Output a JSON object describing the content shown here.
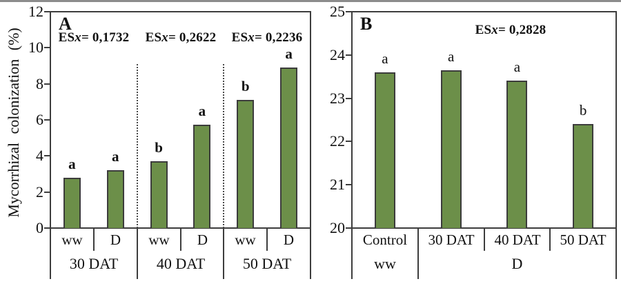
{
  "figure": {
    "background": "#ffffff",
    "top_edge_color": "#8c8c8c"
  },
  "colors": {
    "bar_fill": "#6c8f49",
    "bar_border": "#3c3c3c",
    "axis": "#3d3d3d",
    "divider": "#4a4a4a",
    "text": "#111111"
  },
  "chart_data": [
    {
      "type": "bar",
      "panel_label": "A",
      "ylabel": "Mycorrhizal colonization (%)",
      "ylim": [
        0,
        12
      ],
      "yticks": [
        0,
        2,
        4,
        6,
        8,
        10,
        12
      ],
      "grid": false,
      "legend_position": "none",
      "letters_bold": true,
      "groups": [
        {
          "label": "30 DAT",
          "es": "ESx= 0,1732",
          "bars": [
            {
              "category": "ww",
              "value": 2.8,
              "letter": "a"
            },
            {
              "category": "D",
              "value": 3.2,
              "letter": "a"
            }
          ]
        },
        {
          "label": "40 DAT",
          "es": "ESx= 0,2622",
          "bars": [
            {
              "category": "ww",
              "value": 3.7,
              "letter": "b"
            },
            {
              "category": "D",
              "value": 5.75,
              "letter": "a"
            }
          ]
        },
        {
          "label": "50 DAT",
          "es": "ESx= 0,2236",
          "bars": [
            {
              "category": "ww",
              "value": 7.1,
              "letter": "b"
            },
            {
              "category": "D",
              "value": 8.9,
              "letter": "a"
            }
          ]
        }
      ]
    },
    {
      "type": "bar",
      "panel_label": "B",
      "es": "ESx= 0,2828",
      "ylim": [
        20,
        25
      ],
      "yticks": [
        20,
        21,
        22,
        23,
        24,
        25
      ],
      "grid": false,
      "legend_position": "none",
      "letters_bold": false,
      "bars": [
        {
          "category": "Control",
          "value": 23.6,
          "letter": "a"
        },
        {
          "category": "30 DAT",
          "value": 23.65,
          "letter": "a"
        },
        {
          "category": "40 DAT",
          "value": 23.4,
          "letter": "a"
        },
        {
          "category": "50 DAT",
          "value": 22.4,
          "letter": "b"
        }
      ],
      "row2": [
        {
          "label": "ww",
          "span": 1
        },
        {
          "label": "D",
          "span": 3
        }
      ]
    }
  ]
}
